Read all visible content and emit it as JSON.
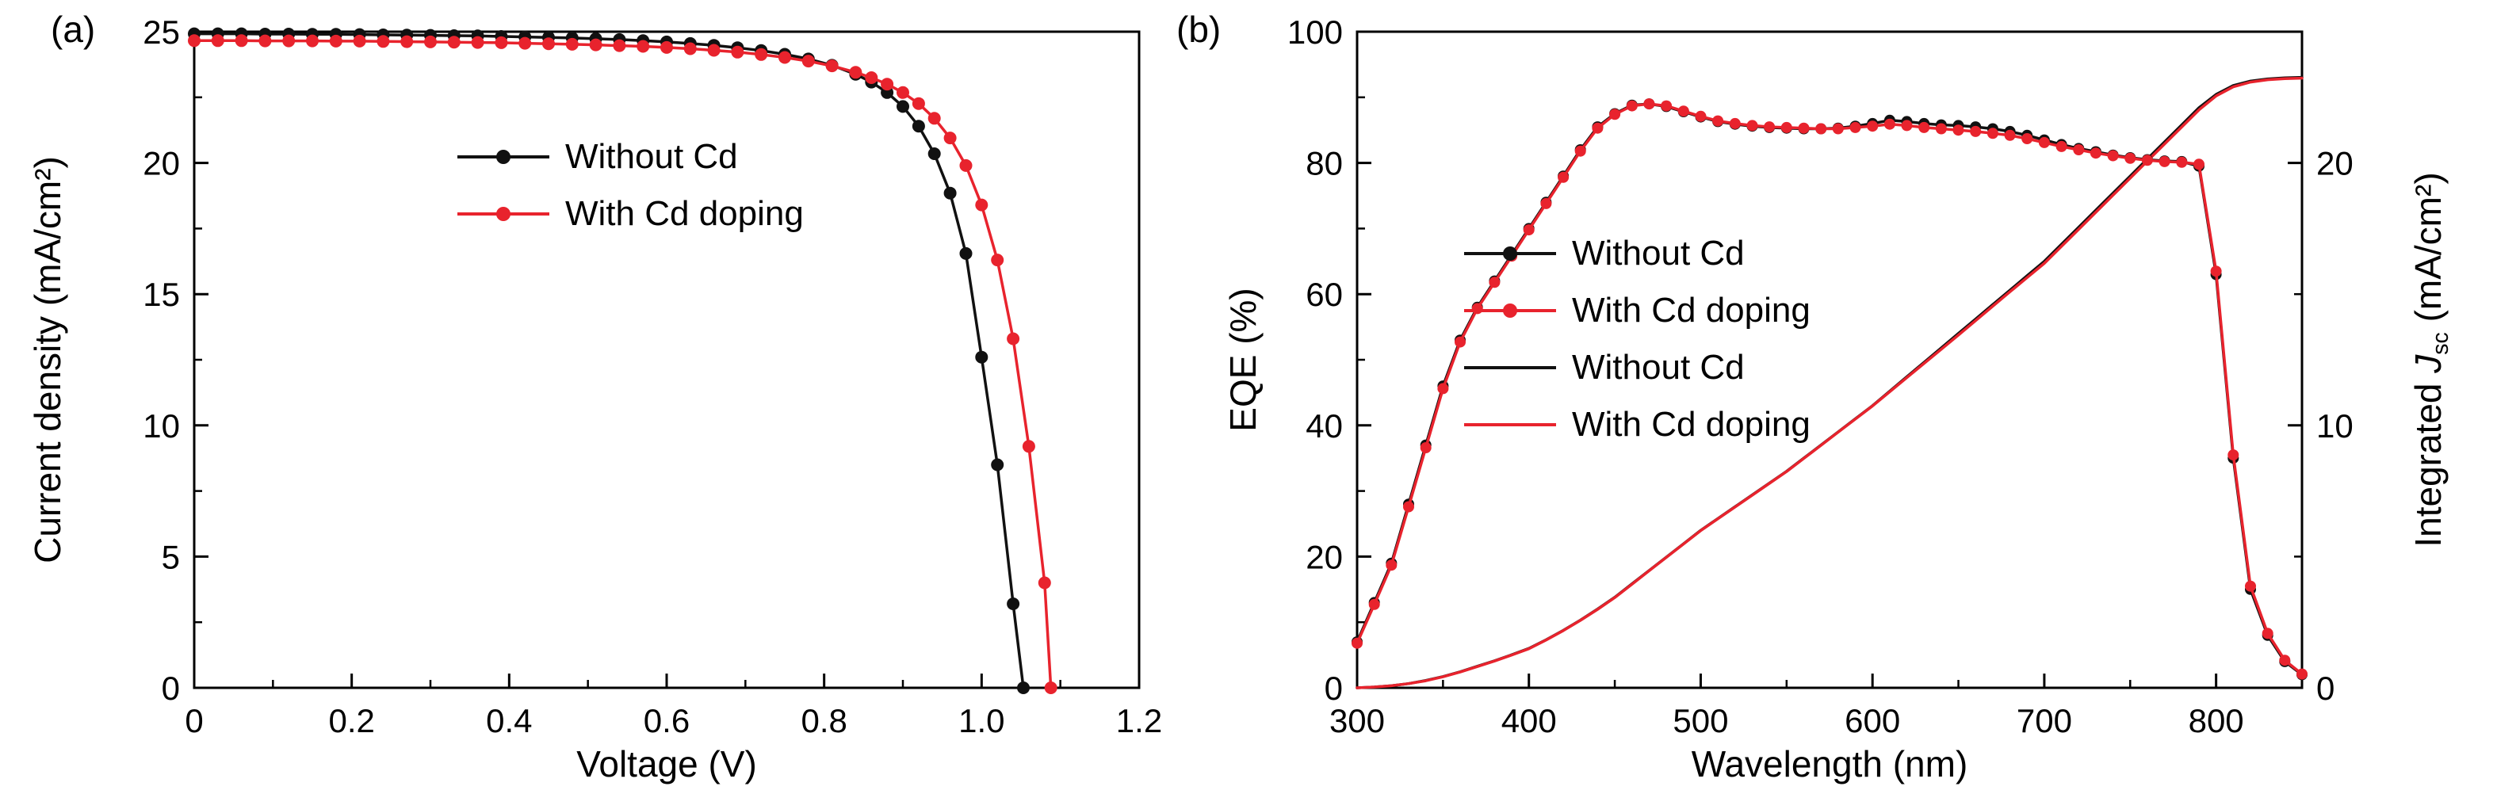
{
  "panels": {
    "a": {
      "tag": "(a)"
    },
    "b": {
      "tag": "(b)"
    }
  },
  "colors": {
    "black_series": "#111111",
    "red_series": "#e8232d",
    "axis": "#000000",
    "background": "#ffffff"
  },
  "chart_data": [
    {
      "type": "line",
      "panel": "a",
      "title": "",
      "xlabel": "Voltage (V)",
      "ylabel": "Current density (mA/cm²)",
      "xlim": [
        0,
        1.2
      ],
      "ylim": [
        0,
        25
      ],
      "xticks": [
        0,
        0.2,
        0.4,
        0.6,
        0.8,
        1.0,
        1.2
      ],
      "xtick_labels": [
        "0",
        "0.2",
        "0.4",
        "0.6",
        "0.8",
        "1.0",
        "1.2"
      ],
      "yticks": [
        0,
        5,
        10,
        15,
        20,
        25
      ],
      "ytick_labels": [
        "0",
        "5",
        "10",
        "15",
        "20",
        "25"
      ],
      "grid": false,
      "legend_position": "upper-left-inside",
      "series": [
        {
          "name": "Without Cd",
          "color": "#111111",
          "marker": true,
          "x": [
            0,
            0.03,
            0.06,
            0.09,
            0.12,
            0.15,
            0.18,
            0.21,
            0.24,
            0.27,
            0.3,
            0.33,
            0.36,
            0.39,
            0.42,
            0.45,
            0.48,
            0.51,
            0.54,
            0.57,
            0.6,
            0.63,
            0.66,
            0.69,
            0.72,
            0.75,
            0.78,
            0.81,
            0.84,
            0.86,
            0.88,
            0.9,
            0.92,
            0.94,
            0.96,
            0.98,
            1.0,
            1.02,
            1.04,
            1.053
          ],
          "y": [
            24.92,
            24.92,
            24.92,
            24.91,
            24.91,
            24.9,
            24.9,
            24.89,
            24.88,
            24.87,
            24.86,
            24.85,
            24.84,
            24.82,
            24.8,
            24.78,
            24.76,
            24.73,
            24.7,
            24.66,
            24.61,
            24.55,
            24.48,
            24.39,
            24.28,
            24.14,
            23.96,
            23.72,
            23.38,
            23.08,
            22.68,
            22.15,
            21.4,
            20.35,
            18.85,
            16.55,
            12.6,
            8.5,
            3.2,
            0.0
          ]
        },
        {
          "name": "With Cd doping",
          "color": "#e8232d",
          "marker": true,
          "x": [
            0,
            0.03,
            0.06,
            0.09,
            0.12,
            0.15,
            0.18,
            0.21,
            0.24,
            0.27,
            0.3,
            0.33,
            0.36,
            0.39,
            0.42,
            0.45,
            0.48,
            0.51,
            0.54,
            0.57,
            0.6,
            0.63,
            0.66,
            0.69,
            0.72,
            0.75,
            0.78,
            0.81,
            0.84,
            0.86,
            0.88,
            0.9,
            0.92,
            0.94,
            0.96,
            0.98,
            1.0,
            1.02,
            1.04,
            1.06,
            1.08,
            1.088
          ],
          "y": [
            24.66,
            24.66,
            24.66,
            24.65,
            24.65,
            24.65,
            24.64,
            24.64,
            24.63,
            24.62,
            24.61,
            24.6,
            24.59,
            24.58,
            24.56,
            24.54,
            24.52,
            24.5,
            24.47,
            24.44,
            24.4,
            24.35,
            24.29,
            24.22,
            24.13,
            24.02,
            23.88,
            23.7,
            23.45,
            23.25,
            23.0,
            22.68,
            22.26,
            21.7,
            20.95,
            19.9,
            18.4,
            16.3,
            13.3,
            9.2,
            4.0,
            0.0
          ]
        }
      ]
    },
    {
      "type": "line",
      "panel": "b",
      "title": "",
      "xlabel": "Wavelength (nm)",
      "ylabel_left": "EQE (%)",
      "ylabel_right": "Integrated Jsc (mA/cm²)",
      "ylabel_right_parts": {
        "pre": "Integrated ",
        "italic": "J",
        "sub": "sc",
        "post": " (mA/cm²)"
      },
      "xlim": [
        300,
        850
      ],
      "ylim_left": [
        0,
        100
      ],
      "ylim_right": [
        0,
        25
      ],
      "xticks": [
        300,
        400,
        500,
        600,
        700,
        800
      ],
      "xtick_labels": [
        "300",
        "400",
        "500",
        "600",
        "700",
        "800"
      ],
      "yticks_left": [
        0,
        20,
        40,
        60,
        80,
        100
      ],
      "ytick_labels_left": [
        "0",
        "20",
        "40",
        "60",
        "80",
        "100"
      ],
      "yticks_right": [
        0,
        10,
        20
      ],
      "ytick_labels_right": [
        "0",
        "10",
        "20"
      ],
      "grid": false,
      "legend_position": "upper-middle-inside",
      "x": [
        300,
        310,
        320,
        330,
        340,
        350,
        360,
        370,
        380,
        390,
        400,
        410,
        420,
        430,
        440,
        450,
        460,
        470,
        480,
        490,
        500,
        510,
        520,
        530,
        540,
        550,
        560,
        570,
        580,
        590,
        600,
        610,
        620,
        630,
        640,
        650,
        660,
        670,
        680,
        690,
        700,
        710,
        720,
        730,
        740,
        750,
        760,
        770,
        780,
        790,
        800,
        810,
        820,
        830,
        840,
        850
      ],
      "series": [
        {
          "name": "Without Cd",
          "axis": "left",
          "color": "#111111",
          "marker": true,
          "y": [
            7.0,
            13.0,
            19.0,
            28.0,
            37.0,
            46.0,
            53.0,
            58.0,
            62.0,
            66.0,
            70.0,
            74.0,
            78.0,
            82.0,
            85.5,
            87.5,
            88.8,
            89.0,
            88.6,
            87.8,
            87.0,
            86.3,
            85.9,
            85.6,
            85.4,
            85.3,
            85.2,
            85.2,
            85.3,
            85.6,
            86.0,
            86.5,
            86.3,
            86.0,
            85.8,
            85.7,
            85.5,
            85.2,
            84.8,
            84.2,
            83.5,
            82.8,
            82.2,
            81.7,
            81.2,
            80.8,
            80.5,
            80.3,
            80.2,
            79.5,
            63.0,
            35.0,
            15.0,
            8.0,
            4.0,
            2.0
          ]
        },
        {
          "name": "With Cd doping",
          "axis": "left",
          "color": "#e8232d",
          "marker": true,
          "y": [
            6.8,
            12.7,
            18.7,
            27.6,
            36.6,
            45.6,
            52.7,
            57.8,
            61.8,
            65.8,
            69.8,
            73.8,
            77.8,
            81.8,
            85.3,
            87.4,
            88.7,
            89.0,
            88.7,
            87.9,
            87.1,
            86.4,
            86.0,
            85.7,
            85.5,
            85.4,
            85.3,
            85.2,
            85.2,
            85.4,
            85.6,
            85.9,
            85.7,
            85.4,
            85.2,
            85.0,
            84.8,
            84.5,
            84.2,
            83.7,
            83.1,
            82.5,
            82.0,
            81.5,
            81.1,
            80.7,
            80.4,
            80.2,
            80.1,
            79.8,
            63.5,
            35.5,
            15.5,
            8.3,
            4.2,
            2.1
          ]
        },
        {
          "name": "Without Cd",
          "axis": "right",
          "color": "#111111",
          "marker": false,
          "y": [
            0.0,
            0.03,
            0.08,
            0.16,
            0.28,
            0.43,
            0.61,
            0.82,
            1.03,
            1.26,
            1.5,
            1.83,
            2.19,
            2.58,
            3.0,
            3.45,
            3.96,
            4.47,
            4.98,
            5.49,
            6.0,
            6.45,
            6.9,
            7.35,
            7.8,
            8.25,
            8.75,
            9.25,
            9.75,
            10.25,
            10.75,
            11.3,
            11.85,
            12.4,
            12.95,
            13.5,
            14.05,
            14.6,
            15.15,
            15.7,
            16.25,
            16.9,
            17.55,
            18.2,
            18.85,
            19.5,
            20.15,
            20.8,
            21.45,
            22.1,
            22.61,
            22.95,
            23.12,
            23.2,
            23.24,
            23.26
          ]
        },
        {
          "name": "With Cd doping",
          "axis": "right",
          "color": "#e8232d",
          "marker": false,
          "y": [
            0.0,
            0.03,
            0.08,
            0.16,
            0.27,
            0.42,
            0.6,
            0.81,
            1.02,
            1.25,
            1.49,
            1.82,
            2.18,
            2.57,
            2.99,
            3.44,
            3.95,
            4.46,
            4.97,
            5.48,
            5.99,
            6.44,
            6.89,
            7.34,
            7.79,
            8.24,
            8.74,
            9.24,
            9.74,
            10.24,
            10.74,
            11.28,
            11.82,
            12.36,
            12.9,
            13.44,
            13.99,
            14.54,
            15.09,
            15.63,
            16.17,
            16.82,
            17.47,
            18.12,
            18.77,
            19.42,
            20.07,
            20.72,
            21.37,
            22.02,
            22.55,
            22.9,
            23.08,
            23.17,
            23.21,
            23.23
          ]
        }
      ]
    }
  ]
}
